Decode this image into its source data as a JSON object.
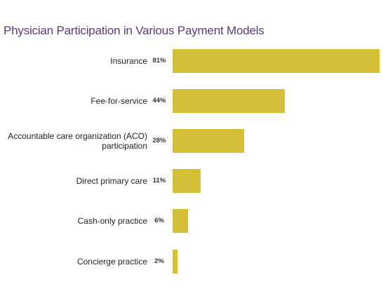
{
  "chart_data": {
    "type": "bar",
    "orientation": "horizontal",
    "title": "Physician Participation in Various Payment Models",
    "categories": [
      "Insurance",
      "Fee-for-service",
      "Accountable care organization (ACO) participation",
      "Direct primary care",
      "Cash-only practice",
      "Concierge practice"
    ],
    "values": [
      81,
      44,
      28,
      11,
      6,
      2
    ],
    "value_labels": [
      "81%",
      "44%",
      "28%",
      "11%",
      "6%",
      "2%"
    ],
    "color": "#d4bf38"
  }
}
